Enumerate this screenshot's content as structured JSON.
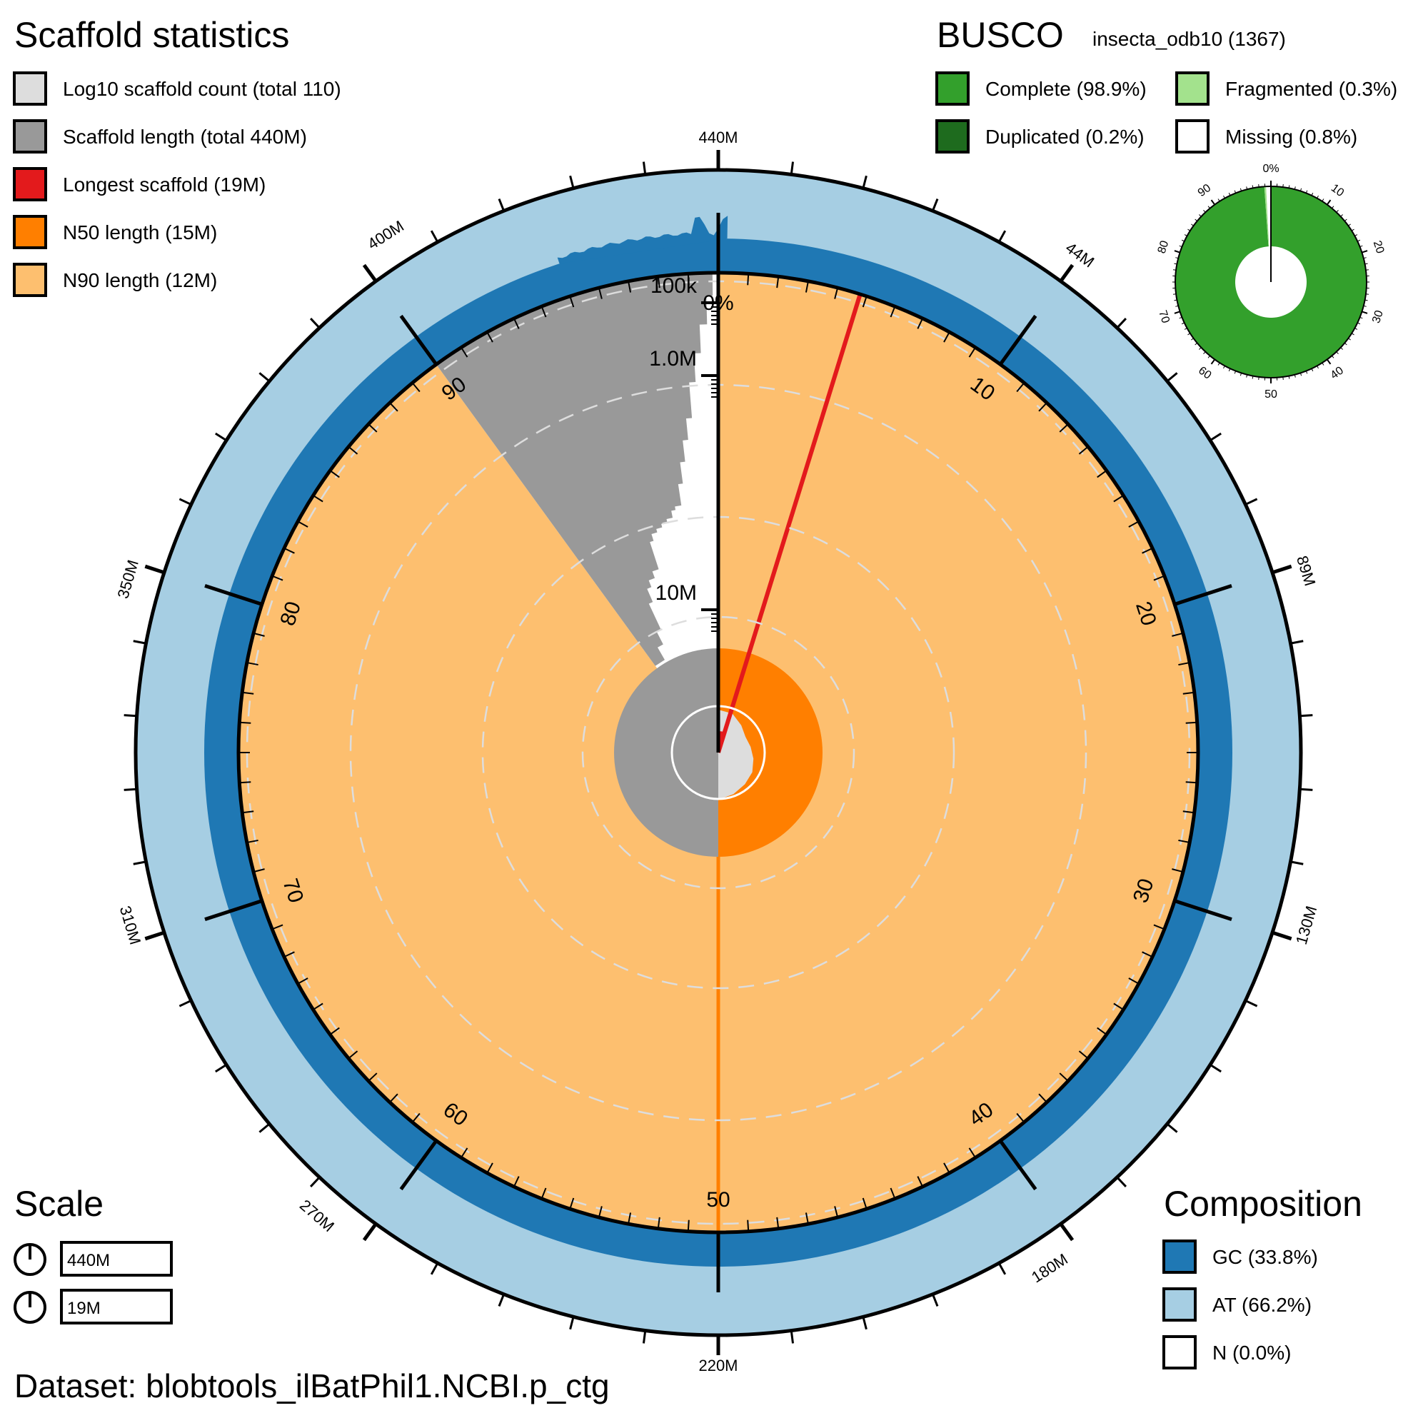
{
  "dataset": "Dataset: blobtools_ilBatPhil1.NCBI.p_ctg",
  "scaffold_stats": {
    "title": "Scaffold statistics",
    "items": [
      {
        "label": "Log10 scaffold count (total 110)",
        "color": "#dddddd"
      },
      {
        "label": "Scaffold length (total 440M)",
        "color": "#999999"
      },
      {
        "label": "Longest scaffold (19M)",
        "color": "#e31a1c"
      },
      {
        "label": "N50 length (15M)",
        "color": "#ff7f00"
      },
      {
        "label": "N90 length (12M)",
        "color": "#fdbf6f"
      }
    ]
  },
  "busco": {
    "title": "BUSCO",
    "lineage": "insecta_odb10 (1367)",
    "items": [
      {
        "label": "Complete (98.9%)",
        "color": "#33a02c"
      },
      {
        "label": "Fragmented (0.3%)",
        "color": "#a3e28d"
      },
      {
        "label": "Duplicated (0.2%)",
        "color": "#1e6b1e"
      },
      {
        "label": "Missing (0.8%)",
        "color": "#ffffff"
      }
    ],
    "ticks": [
      "0%",
      "10",
      "20",
      "30",
      "40",
      "50",
      "60",
      "70",
      "80",
      "90"
    ]
  },
  "scale": {
    "title": "Scale",
    "items": [
      "440M",
      "19M"
    ]
  },
  "composition": {
    "title": "Composition",
    "items": [
      {
        "label": "GC (33.8%)",
        "color": "#1f78b4"
      },
      {
        "label": "AT (66.2%)",
        "color": "#a6cee3"
      },
      {
        "label": "N (0.0%)",
        "color": "#ffffff"
      }
    ]
  },
  "chart_data": {
    "type": "snail",
    "total_length": "440M",
    "scaffold_count": 110,
    "longest_scaffold": "19M",
    "n50": "15M",
    "n90": "12M",
    "gc_percent": 33.8,
    "at_percent": 66.2,
    "n_percent": 0.0,
    "n50_percent": 50,
    "n90_percent": 90,
    "outer_axis_labels": [
      "440M",
      "44M",
      "89M",
      "130M",
      "180M",
      "220M",
      "270M",
      "310M",
      "350M",
      "400M"
    ],
    "percent_axis_labels": [
      "0%",
      "10",
      "20",
      "30",
      "40",
      "50",
      "60",
      "70",
      "80",
      "90"
    ],
    "radial_axis_labels": [
      "100k",
      "1.0M",
      "10M"
    ],
    "busco": {
      "complete": 98.9,
      "duplicated": 0.2,
      "fragmented": 0.3,
      "missing": 0.8,
      "total": 1367,
      "lineage": "insecta_odb10"
    }
  }
}
